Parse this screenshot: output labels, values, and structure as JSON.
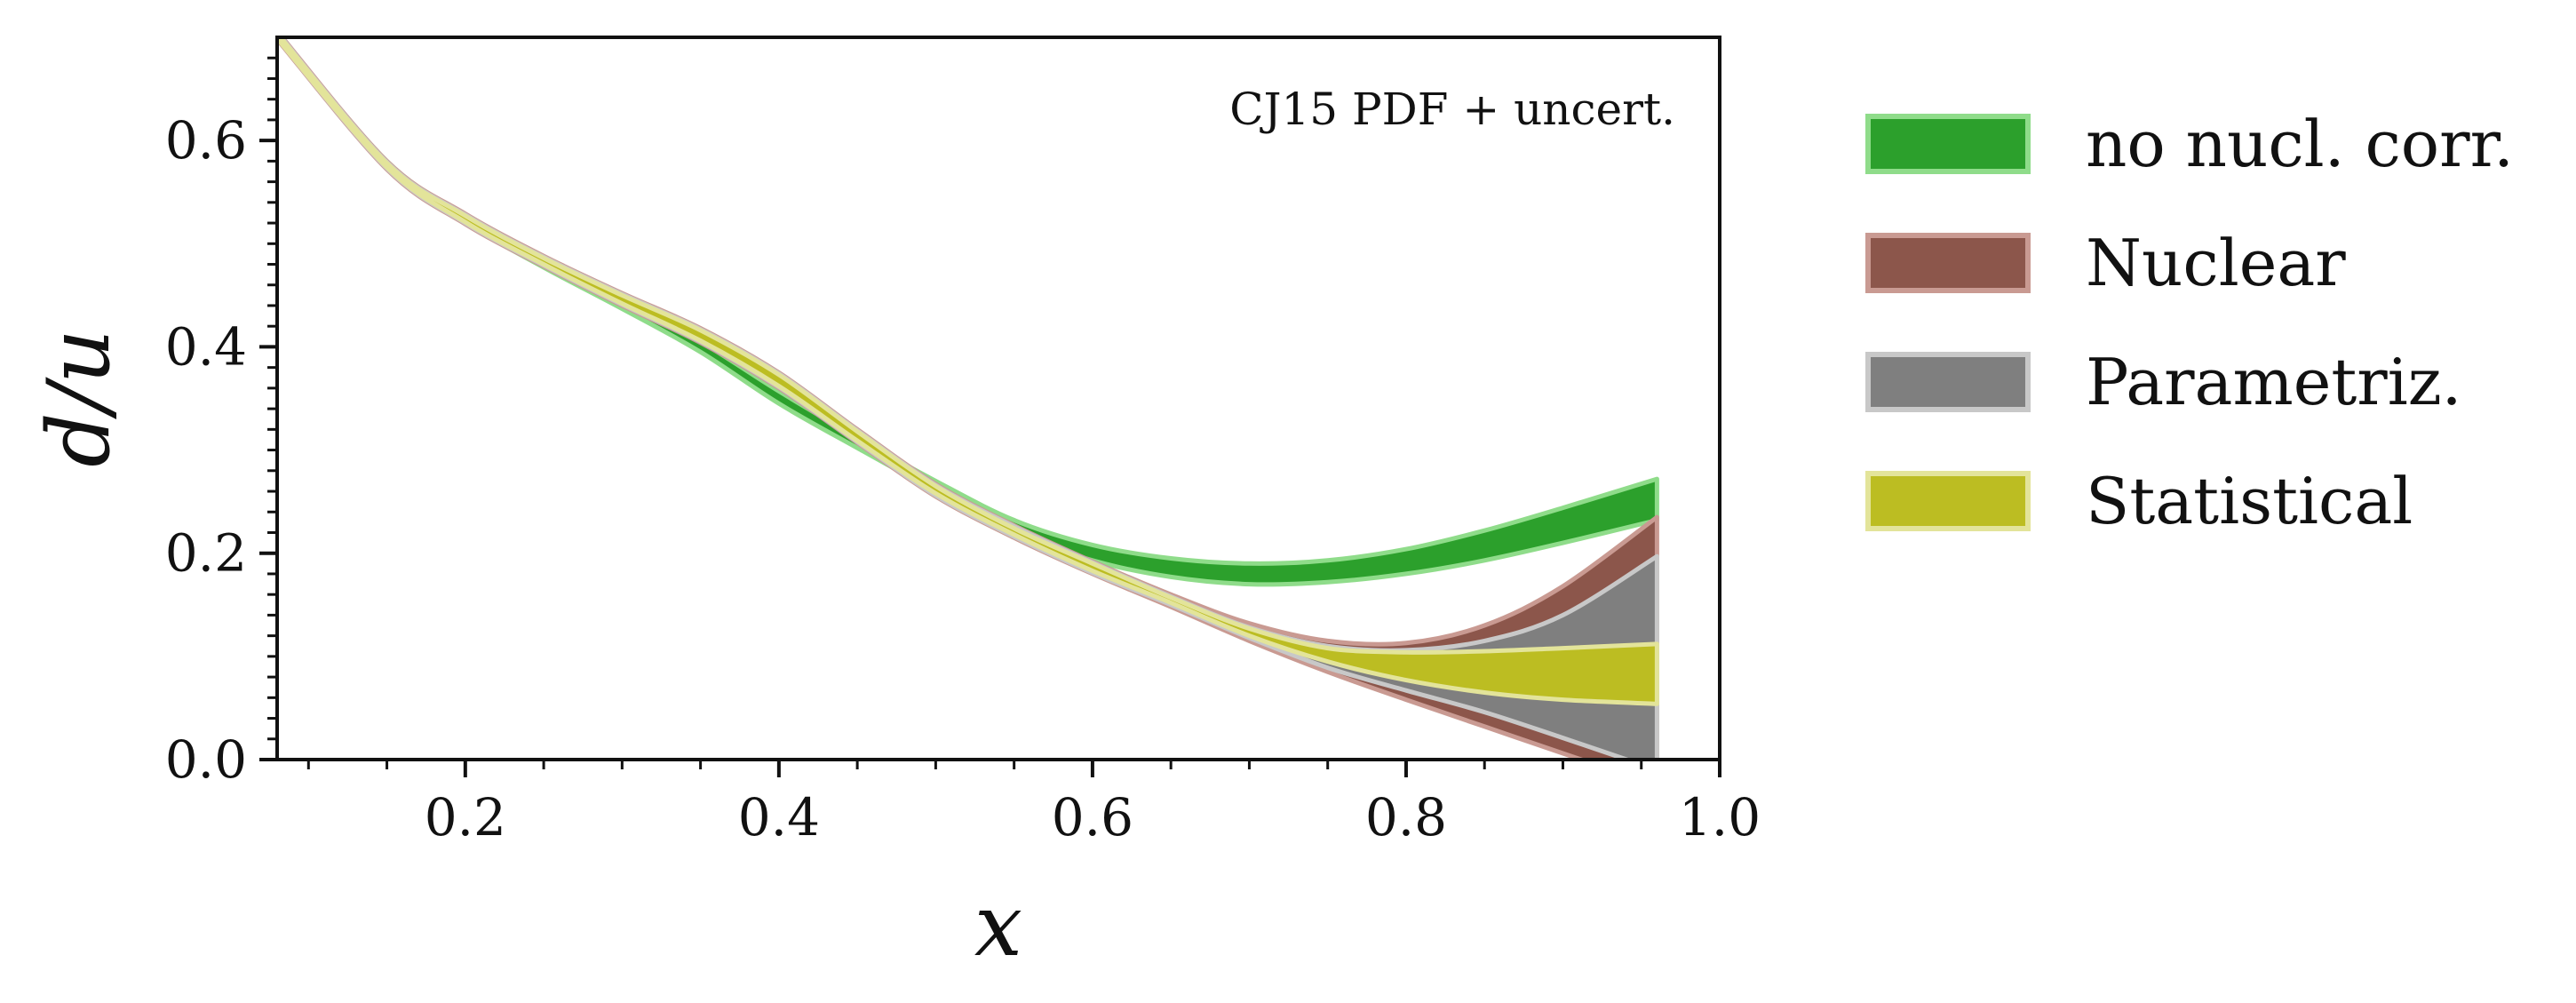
{
  "chart_data": {
    "type": "area",
    "annotation": "CJ15 PDF + uncert.",
    "xlabel": "x",
    "ylabel": "d/u",
    "xlim": [
      0.08,
      1.0
    ],
    "ylim": [
      0.0,
      0.7
    ],
    "x_ticks": [
      0.2,
      0.4,
      0.6,
      0.8,
      1.0
    ],
    "x_tick_labels": [
      "0.2",
      "0.4",
      "0.6",
      "0.8",
      "1.0"
    ],
    "y_ticks": [
      0.0,
      0.2,
      0.4,
      0.6
    ],
    "y_tick_labels": [
      "0.0",
      "0.2",
      "0.4",
      "0.6"
    ],
    "grid": false,
    "legend_position": "outside-right",
    "series": [
      {
        "name": "no nucl. corr.",
        "color": "#2ca02c",
        "edge_color": "#8fdc8a",
        "x": [
          0.08,
          0.15,
          0.2,
          0.25,
          0.3,
          0.35,
          0.4,
          0.45,
          0.5,
          0.55,
          0.6,
          0.65,
          0.7,
          0.75,
          0.8,
          0.85,
          0.9,
          0.96
        ],
        "lower": [
          0.7,
          0.573,
          0.52,
          0.477,
          0.437,
          0.395,
          0.345,
          0.302,
          0.26,
          0.22,
          0.193,
          0.177,
          0.17,
          0.172,
          0.18,
          0.193,
          0.21,
          0.232
        ],
        "upper": [
          0.705,
          0.58,
          0.528,
          0.485,
          0.446,
          0.405,
          0.357,
          0.312,
          0.27,
          0.232,
          0.208,
          0.195,
          0.19,
          0.193,
          0.204,
          0.222,
          0.244,
          0.272
        ]
      },
      {
        "name": "Nuclear",
        "color": "#8c564b",
        "edge_color": "#c99a92",
        "x": [
          0.08,
          0.15,
          0.2,
          0.25,
          0.3,
          0.35,
          0.4,
          0.45,
          0.5,
          0.55,
          0.6,
          0.65,
          0.7,
          0.75,
          0.8,
          0.85,
          0.9,
          0.96
        ],
        "lower": [
          0.698,
          0.572,
          0.519,
          0.478,
          0.44,
          0.404,
          0.36,
          0.307,
          0.255,
          0.215,
          0.18,
          0.148,
          0.115,
          0.085,
          0.058,
          0.032,
          0.006,
          -0.025
        ],
        "upper": [
          0.706,
          0.58,
          0.529,
          0.488,
          0.452,
          0.418,
          0.375,
          0.32,
          0.267,
          0.227,
          0.192,
          0.16,
          0.132,
          0.115,
          0.113,
          0.13,
          0.168,
          0.235
        ]
      },
      {
        "name": "Parametriz.",
        "color": "#7f7f7f",
        "edge_color": "#c8c8c8",
        "x": [
          0.08,
          0.15,
          0.2,
          0.25,
          0.3,
          0.35,
          0.4,
          0.45,
          0.5,
          0.55,
          0.6,
          0.65,
          0.7,
          0.75,
          0.8,
          0.85,
          0.9,
          0.96
        ],
        "lower": [
          0.699,
          0.573,
          0.52,
          0.479,
          0.441,
          0.405,
          0.361,
          0.308,
          0.256,
          0.216,
          0.181,
          0.15,
          0.118,
          0.089,
          0.067,
          0.046,
          0.021,
          -0.01
        ],
        "upper": [
          0.705,
          0.579,
          0.528,
          0.487,
          0.451,
          0.417,
          0.374,
          0.319,
          0.266,
          0.226,
          0.191,
          0.158,
          0.128,
          0.11,
          0.106,
          0.115,
          0.14,
          0.197
        ]
      },
      {
        "name": "Statistical",
        "color": "#bcbd22",
        "edge_color": "#e3e49a",
        "x": [
          0.08,
          0.15,
          0.2,
          0.25,
          0.3,
          0.35,
          0.4,
          0.45,
          0.5,
          0.55,
          0.6,
          0.65,
          0.7,
          0.75,
          0.8,
          0.85,
          0.9,
          0.96
        ],
        "lower": [
          0.699,
          0.574,
          0.521,
          0.48,
          0.442,
          0.406,
          0.362,
          0.309,
          0.258,
          0.218,
          0.183,
          0.152,
          0.12,
          0.095,
          0.077,
          0.065,
          0.058,
          0.054
        ],
        "upper": [
          0.704,
          0.578,
          0.527,
          0.486,
          0.45,
          0.416,
          0.373,
          0.318,
          0.265,
          0.224,
          0.19,
          0.157,
          0.127,
          0.108,
          0.104,
          0.105,
          0.108,
          0.112
        ]
      }
    ]
  }
}
